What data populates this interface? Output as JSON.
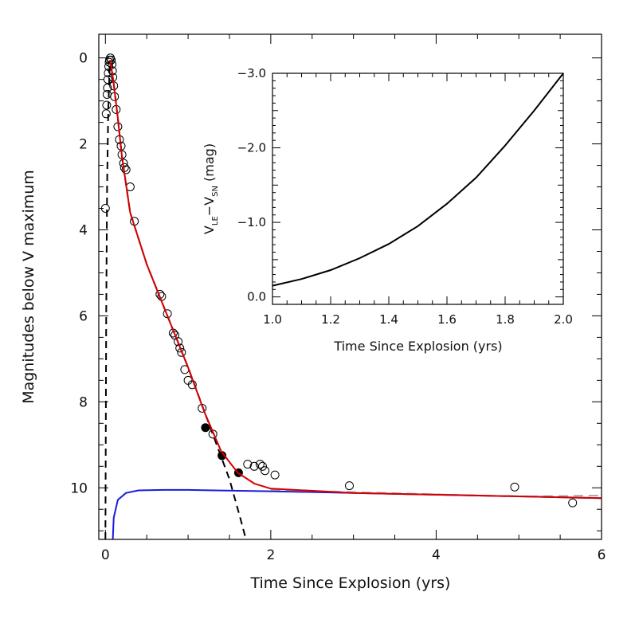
{
  "colors": {
    "frame": "#000000",
    "model_total": "#d40000",
    "model_sn_decline": "#000000",
    "model_light_echo": "#1a1adc",
    "inset_curve": "#000000"
  },
  "chart_data": [
    {
      "type": "scatter",
      "xlabel": "Time Since Explosion (yrs)",
      "ylabel": "Magnitudes below V maximum",
      "xlim": [
        -0.08,
        6.0
      ],
      "ylim": [
        11.2,
        -0.55
      ],
      "y_inverted": true,
      "xticks": [
        0,
        2,
        4,
        6
      ],
      "yticks": [
        0,
        2,
        4,
        6,
        8,
        10
      ],
      "grid": false,
      "legend": "none",
      "series": [
        {
          "kind": "open_circles",
          "points": [
            [
              0.0,
              3.5
            ],
            [
              0.01,
              1.3
            ],
            [
              0.015,
              1.1
            ],
            [
              0.02,
              0.85
            ],
            [
              0.025,
              0.7
            ],
            [
              0.03,
              0.5
            ],
            [
              0.035,
              0.35
            ],
            [
              0.04,
              0.2
            ],
            [
              0.045,
              0.1
            ],
            [
              0.05,
              0.05
            ],
            [
              0.06,
              0.0
            ],
            [
              0.07,
              0.05
            ],
            [
              0.08,
              0.15
            ],
            [
              0.085,
              0.3
            ],
            [
              0.09,
              0.45
            ],
            [
              0.1,
              0.65
            ],
            [
              0.11,
              0.9
            ],
            [
              0.13,
              1.2
            ],
            [
              0.15,
              1.6
            ],
            [
              0.17,
              1.9
            ],
            [
              0.19,
              2.05
            ],
            [
              0.2,
              2.25
            ],
            [
              0.22,
              2.45
            ],
            [
              0.23,
              2.55
            ],
            [
              0.25,
              2.6
            ],
            [
              0.3,
              3.0
            ],
            [
              0.35,
              3.8
            ],
            [
              0.66,
              5.5
            ],
            [
              0.68,
              5.55
            ],
            [
              0.75,
              5.95
            ],
            [
              0.82,
              6.4
            ],
            [
              0.84,
              6.45
            ],
            [
              0.88,
              6.6
            ],
            [
              0.9,
              6.75
            ],
            [
              0.92,
              6.85
            ],
            [
              0.96,
              7.25
            ],
            [
              1.0,
              7.5
            ],
            [
              1.05,
              7.6
            ],
            [
              1.17,
              8.15
            ],
            [
              1.3,
              8.75
            ],
            [
              1.72,
              9.45
            ],
            [
              1.8,
              9.5
            ],
            [
              1.87,
              9.45
            ],
            [
              1.9,
              9.5
            ],
            [
              1.93,
              9.6
            ],
            [
              2.05,
              9.7
            ],
            [
              2.95,
              9.95
            ],
            [
              4.95,
              9.98
            ],
            [
              5.65,
              10.35
            ]
          ]
        },
        {
          "kind": "filled_circles",
          "points": [
            [
              1.21,
              8.6
            ],
            [
              1.41,
              9.25
            ],
            [
              1.61,
              9.65
            ]
          ]
        },
        {
          "kind": "dashed_sn_peak",
          "color": "#000000",
          "points": [
            [
              0.0,
              11.2
            ],
            [
              0.01,
              6.0
            ],
            [
              0.02,
              3.0
            ],
            [
              0.035,
              1.2
            ],
            [
              0.05,
              0.3
            ],
            [
              0.06,
              0.05
            ]
          ]
        },
        {
          "kind": "dashed_sn_decline",
          "color": "#000000",
          "points": [
            [
              0.06,
              0.05
            ],
            [
              0.1,
              0.6
            ],
            [
              0.15,
              1.4
            ],
            [
              0.2,
              2.3
            ],
            [
              0.3,
              3.6
            ],
            [
              0.5,
              4.8
            ],
            [
              0.75,
              6.0
            ],
            [
              1.0,
              7.2
            ],
            [
              1.25,
              8.5
            ],
            [
              1.5,
              9.8
            ],
            [
              1.63,
              10.7
            ],
            [
              1.7,
              11.2
            ]
          ]
        },
        {
          "kind": "dashed_light_echo_tail",
          "color": "#999999",
          "points": [
            [
              2.0,
              10.05
            ],
            [
              3.0,
              10.1
            ],
            [
              4.0,
              10.15
            ],
            [
              5.0,
              10.2
            ],
            [
              6.0,
              10.18
            ]
          ]
        },
        {
          "kind": "line_total_model",
          "color": "#d40000",
          "points": [
            [
              0.06,
              0.05
            ],
            [
              0.1,
              0.6
            ],
            [
              0.15,
              1.4
            ],
            [
              0.2,
              2.3
            ],
            [
              0.3,
              3.6
            ],
            [
              0.5,
              4.8
            ],
            [
              0.75,
              6.0
            ],
            [
              1.0,
              7.2
            ],
            [
              1.2,
              8.25
            ],
            [
              1.4,
              9.15
            ],
            [
              1.6,
              9.65
            ],
            [
              1.8,
              9.9
            ],
            [
              2.0,
              10.02
            ],
            [
              3.0,
              10.12
            ],
            [
              4.0,
              10.16
            ],
            [
              5.0,
              10.2
            ],
            [
              6.0,
              10.24
            ]
          ]
        },
        {
          "kind": "line_light_echo",
          "color": "#1a1adc",
          "points": [
            [
              0.09,
              11.2
            ],
            [
              0.1,
              10.7
            ],
            [
              0.15,
              10.28
            ],
            [
              0.25,
              10.12
            ],
            [
              0.4,
              10.06
            ],
            [
              0.7,
              10.05
            ],
            [
              1.0,
              10.05
            ],
            [
              2.0,
              10.08
            ],
            [
              3.0,
              10.12
            ],
            [
              4.0,
              10.16
            ],
            [
              5.0,
              10.2
            ],
            [
              6.0,
              10.24
            ]
          ]
        }
      ]
    },
    {
      "type": "line",
      "inset": true,
      "xlabel": "Time Since Explosion (yrs)",
      "ylabel_parts": {
        "v": "V",
        "le": "LE",
        "minus": "−",
        "sn": "SN",
        "unit": "(mag)"
      },
      "xlim": [
        1.0,
        2.0
      ],
      "ylim": [
        0.1,
        -3.0
      ],
      "y_inverted": true,
      "xticks": [
        1.0,
        1.2,
        1.4,
        1.6,
        1.8,
        2.0
      ],
      "xtick_labels": [
        "1.0",
        "1.2",
        "1.4",
        "1.6",
        "1.8",
        "2.0"
      ],
      "yticks": [
        0.0,
        -1.0,
        -2.0,
        -3.0
      ],
      "ytick_labels": [
        "0.0",
        "−1.0",
        "−2.0",
        "−3.0"
      ],
      "grid": false,
      "legend": "none",
      "x": [
        1.0,
        1.1,
        1.2,
        1.3,
        1.4,
        1.5,
        1.6,
        1.7,
        1.8,
        1.9,
        2.0
      ],
      "y": [
        -0.15,
        -0.24,
        -0.36,
        -0.52,
        -0.71,
        -0.95,
        -1.25,
        -1.6,
        -2.03,
        -2.5,
        -3.0
      ]
    }
  ]
}
